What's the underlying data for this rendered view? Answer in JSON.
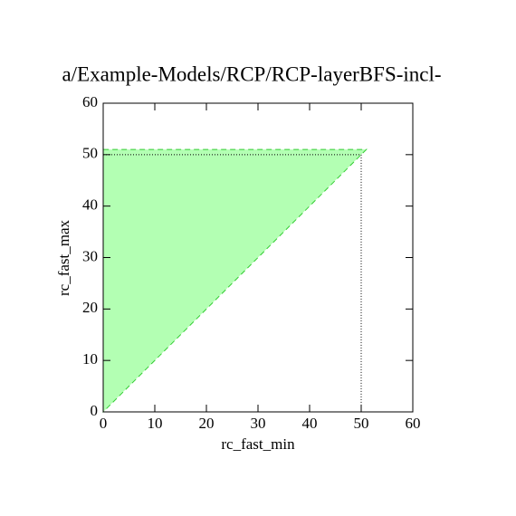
{
  "chart_data": {
    "type": "polygon",
    "title": "a/Example-Models/RCP/RCP-layerBFS-incl-",
    "xlabel": "rc_fast_min",
    "ylabel": "rc_fast_max",
    "xlim": [
      0,
      60
    ],
    "ylim": [
      0,
      60
    ],
    "xticks": [
      0,
      10,
      20,
      30,
      40,
      50,
      60
    ],
    "yticks": [
      0,
      10,
      20,
      30,
      40,
      50,
      60
    ],
    "series": [
      {
        "x": [
          0,
          0,
          51
        ],
        "values": [
          0,
          51,
          51
        ],
        "color": "#b3ffb3",
        "edge_color": "#33cc33",
        "style": "filled"
      },
      {
        "x": [
          0,
          50,
          50
        ],
        "values": [
          50,
          50,
          0
        ],
        "color": "#000000",
        "style": "dotted"
      }
    ]
  }
}
